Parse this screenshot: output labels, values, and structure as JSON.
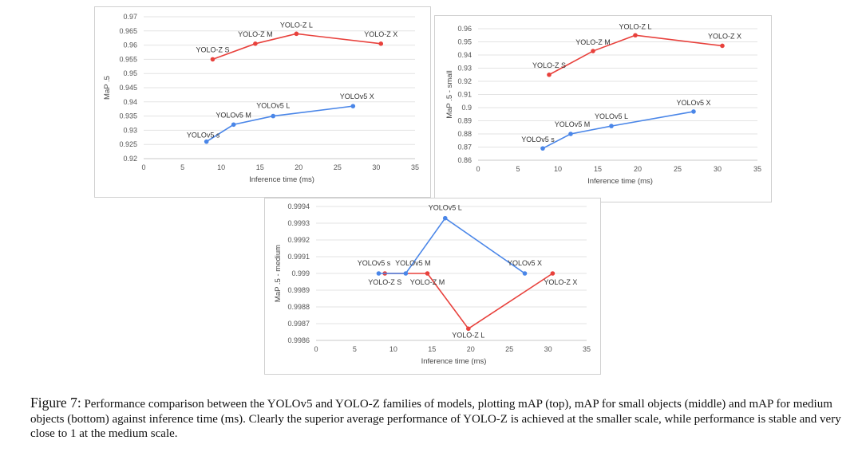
{
  "chart_data": [
    {
      "type": "line",
      "xlabel": "Inference time (ms)",
      "ylabel": "MaP .5",
      "xlim": [
        0,
        35
      ],
      "xticks": [
        0,
        5,
        10,
        15,
        20,
        25,
        30,
        35
      ],
      "ylim": [
        0.92,
        0.97
      ],
      "yticks": [
        "0.92",
        "0.925",
        "0.93",
        "0.935",
        "0.94",
        "0.945",
        "0.95",
        "0.955",
        "0.96",
        "0.965",
        "0.97"
      ],
      "grid": true,
      "series": [
        {
          "name": "YOLO-Z",
          "color": "#e8413c",
          "points": [
            {
              "x": 8.9,
              "y": 0.955,
              "label": "YOLO-Z S"
            },
            {
              "x": 14.4,
              "y": 0.9605,
              "label": "YOLO-Z M"
            },
            {
              "x": 19.7,
              "y": 0.964,
              "label": "YOLO-Z L"
            },
            {
              "x": 30.6,
              "y": 0.9605,
              "label": "YOLO-Z X"
            }
          ]
        },
        {
          "name": "YOLOv5",
          "color": "#4a86e8",
          "points": [
            {
              "x": 8.1,
              "y": 0.926,
              "label": "YOLOv5 s"
            },
            {
              "x": 11.6,
              "y": 0.932,
              "label": "YOLOv5 M"
            },
            {
              "x": 16.7,
              "y": 0.935,
              "label": "YOLOv5 L"
            },
            {
              "x": 27.0,
              "y": 0.9385,
              "label": "YOLOv5 X"
            }
          ]
        }
      ]
    },
    {
      "type": "line",
      "xlabel": "Inference time (ms)",
      "ylabel": "MaP .5 - small",
      "xlim": [
        0,
        35
      ],
      "xticks": [
        0,
        5,
        10,
        15,
        20,
        25,
        30,
        35
      ],
      "ylim": [
        0.86,
        0.96
      ],
      "yticks": [
        "0.86",
        "0.87",
        "0.88",
        "0.89",
        "0.9",
        "0.91",
        "0.92",
        "0.93",
        "0.94",
        "0.95",
        "0.96"
      ],
      "grid": true,
      "series": [
        {
          "name": "YOLO-Z",
          "color": "#e8413c",
          "points": [
            {
              "x": 8.9,
              "y": 0.925,
              "label": "YOLO-Z S"
            },
            {
              "x": 14.4,
              "y": 0.943,
              "label": "YOLO-Z M"
            },
            {
              "x": 19.7,
              "y": 0.955,
              "label": "YOLO-Z L"
            },
            {
              "x": 30.6,
              "y": 0.947,
              "label": "YOLO-Z X"
            }
          ]
        },
        {
          "name": "YOLOv5",
          "color": "#4a86e8",
          "points": [
            {
              "x": 8.1,
              "y": 0.869,
              "label": "YOLOv5 s"
            },
            {
              "x": 11.6,
              "y": 0.88,
              "label": "YOLOv5 M"
            },
            {
              "x": 16.7,
              "y": 0.886,
              "label": "YOLOv5 L"
            },
            {
              "x": 27.0,
              "y": 0.897,
              "label": "YOLOv5 X"
            }
          ]
        }
      ]
    },
    {
      "type": "line",
      "xlabel": "Inference time (ms)",
      "ylabel": "MaP .5 - medium",
      "xlim": [
        0,
        35
      ],
      "xticks": [
        0,
        5,
        10,
        15,
        20,
        25,
        30,
        35
      ],
      "ylim": [
        0.9986,
        0.9994
      ],
      "yticks": [
        "0.9986",
        "0.9987",
        "0.9988",
        "0.9989",
        "0.999",
        "0.9991",
        "0.9992",
        "0.9993",
        "0.9994"
      ],
      "grid": true,
      "series": [
        {
          "name": "YOLO-Z",
          "color": "#e8413c",
          "points": [
            {
              "x": 8.9,
              "y": 0.999,
              "label": "YOLO-Z S"
            },
            {
              "x": 14.4,
              "y": 0.999,
              "label": "YOLO-Z M"
            },
            {
              "x": 19.7,
              "y": 0.99867,
              "label": "YOLO-Z L"
            },
            {
              "x": 30.6,
              "y": 0.999,
              "label": "YOLO-Z X"
            }
          ]
        },
        {
          "name": "YOLOv5",
          "color": "#4a86e8",
          "points": [
            {
              "x": 8.1,
              "y": 0.999,
              "label": "YOLOv5 s"
            },
            {
              "x": 11.6,
              "y": 0.999,
              "label": "YOLOv5 M"
            },
            {
              "x": 16.7,
              "y": 0.99933,
              "label": "YOLOv5 L"
            },
            {
              "x": 27.0,
              "y": 0.999,
              "label": "YOLOv5 X"
            }
          ]
        }
      ]
    }
  ],
  "caption": {
    "figure_label": "Figure 7:",
    "text": "Performance comparison between the YOLOv5 and YOLO-Z families of models, plotting mAP (top), mAP for small objects (middle) and mAP for medium objects (bottom) against inference time (ms). Clearly the superior average performance of YOLO-Z is achieved at the smaller scale, while performance is stable and very close to 1 at the medium scale."
  }
}
